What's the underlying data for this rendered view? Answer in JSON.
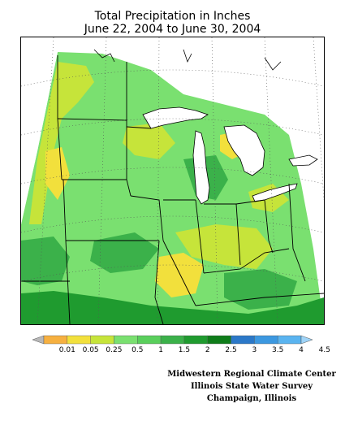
{
  "title": {
    "line1": "Total Precipitation in Inches",
    "line2": "June 22, 2004 to June 30, 2004"
  },
  "legend": {
    "ticks": [
      "0.01",
      "0.05",
      "0.25",
      "0.5",
      "1",
      "1.5",
      "2",
      "2.5",
      "3",
      "3.5",
      "4",
      "4.5"
    ],
    "colors": [
      "#b8b8b8",
      "#f6b040",
      "#f2e03c",
      "#c6e43a",
      "#7ae070",
      "#5acf5c",
      "#3bb14a",
      "#1f9b2f",
      "#0f7d1a",
      "#2b78c8",
      "#3c98e0",
      "#5ab4f0",
      "#9fd4f8"
    ]
  },
  "credits": {
    "line1": "Midwestern Regional Climate Center",
    "line2": "Illinois State Water Survey",
    "line3": "Champaign, Illinois"
  },
  "map": {
    "region": "Midwest United States",
    "palette": {
      "light_green": "#7ae070",
      "green": "#5acf5c",
      "medium_green": "#3bb14a",
      "dark_green": "#1f9b2f",
      "yellow_green": "#c6e43a",
      "yellow": "#f2e03c",
      "water": "#ffffff"
    }
  }
}
